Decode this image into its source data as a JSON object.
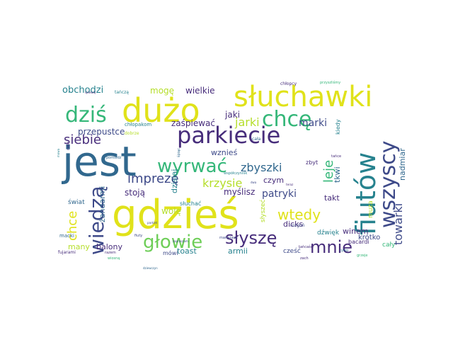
{
  "palette": {
    "dark_purple": "#472d7b",
    "indigo": "#3e4a89",
    "blue": "#31688e",
    "teal": "#26828e",
    "green": "#35b779",
    "lime": "#6ece58",
    "yellow_green": "#b5de2b",
    "yellow": "#e0e21a"
  },
  "words": [
    {
      "text": "gdzieś",
      "color": "#e0e21a"
    },
    {
      "text": "jest",
      "color": "#31688e"
    },
    {
      "text": "dużo",
      "color": "#e0e21a"
    },
    {
      "text": "słuchawki",
      "color": "#e0e21a"
    },
    {
      "text": "fiutów",
      "color": "#26828e"
    },
    {
      "text": "chcę",
      "color": "#35b779"
    },
    {
      "text": "wszyscy",
      "color": "#3e4a89"
    },
    {
      "text": "parkiecie",
      "color": "#472d7b"
    },
    {
      "text": "wiedzą",
      "color": "#3e4a89"
    },
    {
      "text": "dziś",
      "color": "#35b779"
    },
    {
      "text": "wyrwać",
      "color": "#35b779"
    },
    {
      "text": "głowie",
      "color": "#6ece58"
    },
    {
      "text": "słyszę",
      "color": "#472d7b"
    },
    {
      "text": "mnie",
      "color": "#472d7b"
    },
    {
      "text": "siebie",
      "color": "#472d7b"
    },
    {
      "text": "imprezę",
      "color": "#3e4a89"
    },
    {
      "text": "wtedy",
      "color": "#e0e21a"
    },
    {
      "text": "towarki",
      "color": "#3e4a89"
    },
    {
      "text": "chce",
      "color": "#e0e21a"
    },
    {
      "text": "krzysie",
      "color": "#b5de2b"
    },
    {
      "text": "zbyszki",
      "color": "#31688e"
    },
    {
      "text": "jarki",
      "color": "#b5de2b"
    },
    {
      "text": "leje",
      "color": "#35b779"
    },
    {
      "text": "marki",
      "color": "#3e4a89"
    },
    {
      "text": "patryki",
      "color": "#3e4a89"
    },
    {
      "text": "obchodzi",
      "color": "#26828e"
    },
    {
      "text": "mogę",
      "color": "#b5de2b"
    },
    {
      "text": "wielkie",
      "color": "#472d7b"
    },
    {
      "text": "zaśpiewać",
      "color": "#472d7b"
    },
    {
      "text": "jaki",
      "color": "#472d7b"
    },
    {
      "text": "przepustce",
      "color": "#3e4a89"
    },
    {
      "text": "krótko",
      "color": "#3e4a89"
    },
    {
      "text": "nadmiar",
      "color": "#31688e"
    },
    {
      "text": "wznieś",
      "color": "#3e4a89"
    },
    {
      "text": "dzisiaj",
      "color": "#26828e"
    },
    {
      "text": "czym",
      "color": "#472d7b"
    },
    {
      "text": "tkwi",
      "color": "#31688e"
    },
    {
      "text": "myślisz",
      "color": "#472d7b"
    },
    {
      "text": "wolę",
      "color": "#b5de2b"
    },
    {
      "text": "stoją",
      "color": "#472d7b"
    },
    {
      "text": "żandarmi",
      "color": "#31688e"
    },
    {
      "text": "takt",
      "color": "#472d7b"
    },
    {
      "text": "dicks",
      "color": "#472d7b"
    },
    {
      "text": "winem",
      "color": "#472d7b"
    },
    {
      "text": "dźwięk",
      "color": "#26828e"
    },
    {
      "text": "cały",
      "color": "#35b779"
    },
    {
      "text": "bacardi",
      "color": "#472d7b"
    },
    {
      "text": "many",
      "color": "#b5de2b"
    },
    {
      "text": "balony",
      "color": "#472d7b"
    },
    {
      "text": "toast",
      "color": "#26828e"
    },
    {
      "text": "armii",
      "color": "#26828e"
    },
    {
      "text": "mówi",
      "color": "#3e4a89"
    },
    {
      "text": "cześć",
      "color": "#3e4a89"
    },
    {
      "text": "świat",
      "color": "#31688e"
    },
    {
      "text": "słuchać",
      "color": "#26828e"
    },
    {
      "text": "kiedy",
      "color": "#26828e"
    },
    {
      "text": "muza",
      "color": "#b5de2b"
    },
    {
      "text": "zbyt",
      "color": "#472d7b"
    },
    {
      "text": "słyszeć",
      "color": "#b5de2b"
    },
    {
      "text": "rozgoń",
      "color": "#3e4a89"
    },
    {
      "text": "tańczą",
      "color": "#26828e"
    },
    {
      "text": "chłopakom",
      "color": "#26828e"
    },
    {
      "text": "dobrze",
      "color": "#b5de2b"
    },
    {
      "text": "macki",
      "color": "#31688e"
    },
    {
      "text": "fujarami",
      "color": "#472d7b"
    },
    {
      "text": "fiuty",
      "color": "#3e4a89"
    },
    {
      "text": "marianem",
      "color": "#3e4a89"
    },
    {
      "text": "chłopcy",
      "color": "#472d7b"
    },
    {
      "text": "przyszliśmy",
      "color": "#35b779"
    },
    {
      "text": "współczynnik",
      "color": "#26828e"
    },
    {
      "text": "tańcaści",
      "color": "#472d7b"
    },
    {
      "text": "tańce",
      "color": "#472d7b"
    },
    {
      "text": "tyłko",
      "color": "#31688e"
    },
    {
      "text": "grzeje",
      "color": "#35b779"
    },
    {
      "text": "zach",
      "color": "#472d7b"
    },
    {
      "text": "robić",
      "color": "#472d7b"
    },
    {
      "text": "pomiedz",
      "color": "#31688e"
    },
    {
      "text": "dziewczyn",
      "color": "#31688e"
    },
    {
      "text": "spiewaj",
      "color": "#472d7b"
    },
    {
      "text": "śpiąc",
      "color": "#31688e"
    },
    {
      "text": "zapraszam",
      "color": "#3e4a89"
    },
    {
      "text": "teraz",
      "color": "#472d7b"
    },
    {
      "text": "dwa",
      "color": "#3e4a89"
    },
    {
      "text": "cała",
      "color": "#31688e"
    },
    {
      "text": "razem",
      "color": "#472d7b"
    },
    {
      "text": "wiosną",
      "color": "#35b779"
    },
    {
      "text": "parkiet",
      "color": "#3e4a89"
    },
    {
      "text": "mowa",
      "color": "#26828e"
    }
  ]
}
